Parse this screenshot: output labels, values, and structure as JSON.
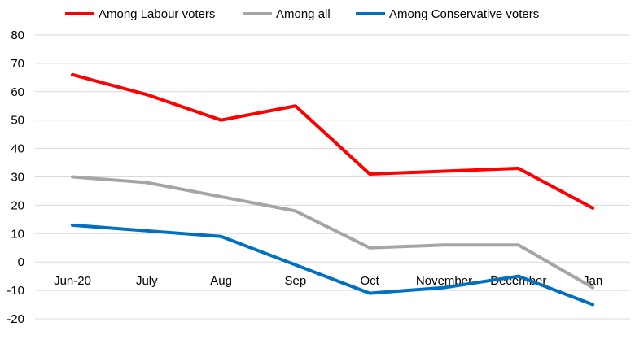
{
  "chart_data": {
    "type": "line",
    "title": "",
    "xlabel": "",
    "ylabel": "",
    "categories": [
      "Jun-20",
      "July",
      "Aug",
      "Sep",
      "Oct",
      "November",
      "December",
      "Jan"
    ],
    "ylim": [
      -20,
      80
    ],
    "yticks": [
      80,
      70,
      60,
      50,
      40,
      30,
      20,
      10,
      0,
      -10,
      -20
    ],
    "grid": true,
    "legend_position": "top",
    "series": [
      {
        "name": "Among Labour voters",
        "color": "#ff0000",
        "values": [
          66,
          59,
          50,
          55,
          31,
          32,
          33,
          19
        ]
      },
      {
        "name": "Among all",
        "color": "#a5a5a5",
        "values": [
          30,
          28,
          23,
          18,
          5,
          6,
          6,
          -9
        ]
      },
      {
        "name": "Among Conservative voters",
        "color": "#0070c0",
        "values": [
          13,
          11,
          9,
          -1,
          -11,
          -9,
          -5,
          -15
        ]
      }
    ]
  }
}
